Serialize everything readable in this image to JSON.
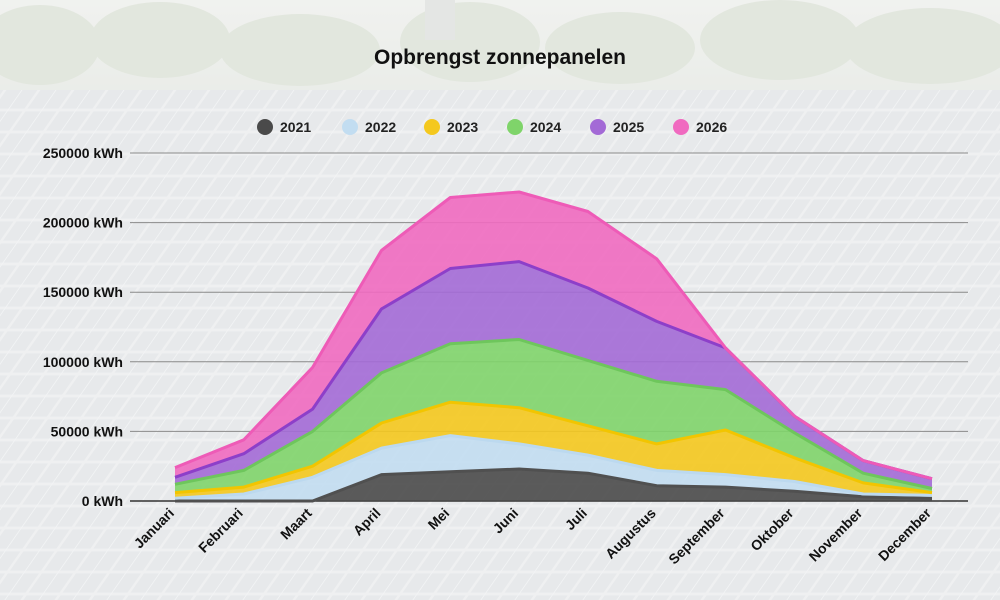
{
  "chart_data": {
    "type": "area",
    "stacked": true,
    "title": "Opbrengst zonnepanelen",
    "categories": [
      "Januari",
      "Februari",
      "Maart",
      "April",
      "Mei",
      "Juni",
      "Juli",
      "Augustus",
      "September",
      "Oktober",
      "November",
      "December"
    ],
    "y_unit": "kWh",
    "ylim": [
      0,
      250000
    ],
    "y_ticks": [
      {
        "value": 0,
        "label": "0 kWh"
      },
      {
        "value": 50000,
        "label": "50000 kWh"
      },
      {
        "value": 100000,
        "label": "100000 kWh"
      },
      {
        "value": 150000,
        "label": "150000 kWh"
      },
      {
        "value": 200000,
        "label": "200000 kWh"
      },
      {
        "value": 250000,
        "label": "250000 kWh"
      }
    ],
    "grid": true,
    "legend_position": "top",
    "series": [
      {
        "name": "2021",
        "color": "#505050",
        "fill": "#4a4a4a",
        "values": [
          0,
          0,
          0,
          19000,
          21000,
          23000,
          20000,
          11000,
          10000,
          7000,
          3000,
          2000
        ]
      },
      {
        "name": "2022",
        "color": "#bcd9ef",
        "fill": "#c2ddf1",
        "values": [
          2000,
          5000,
          17000,
          19000,
          26000,
          18000,
          13000,
          11000,
          9000,
          7000,
          2000,
          2000
        ]
      },
      {
        "name": "2023",
        "color": "#f2c500",
        "fill": "#f4c81e",
        "values": [
          4000,
          5000,
          8000,
          18000,
          24000,
          26000,
          21000,
          19000,
          32000,
          17000,
          8000,
          2000
        ]
      },
      {
        "name": "2024",
        "color": "#6ec65c",
        "fill": "#7fd46a",
        "values": [
          6000,
          12000,
          25000,
          36000,
          42000,
          49000,
          47000,
          45000,
          29000,
          18000,
          7000,
          3000
        ]
      },
      {
        "name": "2025",
        "color": "#8d3fc9",
        "fill": "#a36ad6",
        "values": [
          5000,
          12000,
          16000,
          46000,
          54000,
          56000,
          52000,
          43000,
          30000,
          12000,
          9000,
          7000
        ]
      },
      {
        "name": "2026",
        "color": "#ee5bb7",
        "fill": "#f06ac0",
        "values": [
          7000,
          10000,
          30000,
          42000,
          51000,
          50000,
          55000,
          45000,
          0,
          0,
          0,
          0
        ]
      }
    ]
  }
}
